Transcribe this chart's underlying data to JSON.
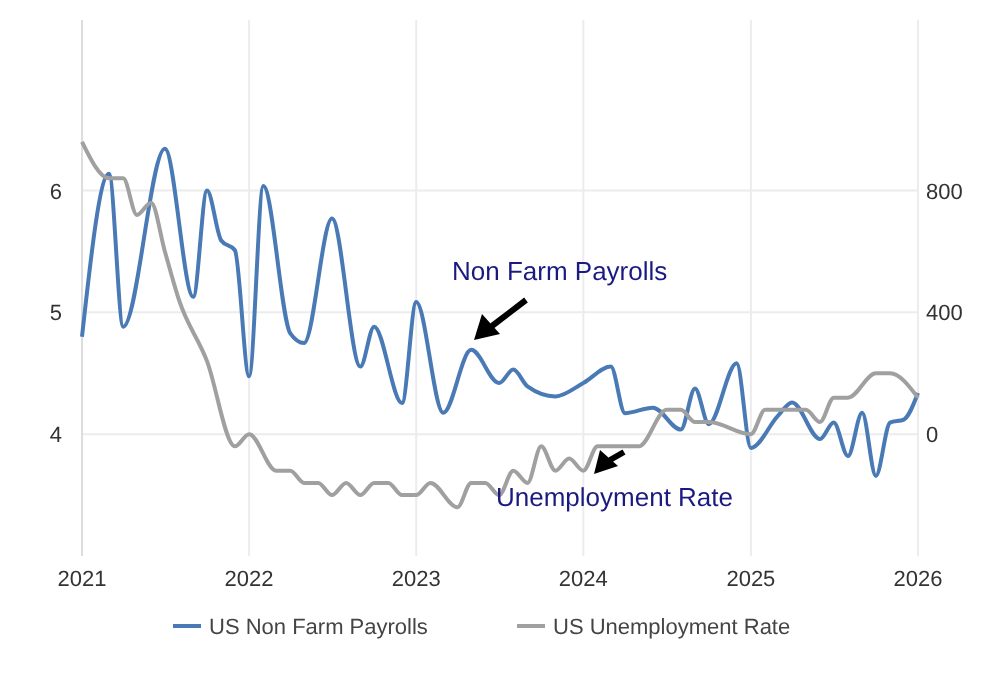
{
  "chart_data": {
    "type": "line",
    "xlim": [
      "2021-01",
      "2026-01"
    ],
    "xticks": [
      "2021",
      "2022",
      "2023",
      "2024",
      "2025",
      "2026"
    ],
    "ylim": [
      3,
      7.4
    ],
    "yticks": [
      4,
      5,
      6
    ],
    "y2lim": [
      -400,
      1360
    ],
    "y2ticks": [
      0,
      400,
      800
    ],
    "grid": true,
    "legend": "bottom",
    "line_style": "solid",
    "annotations": [
      "Non Farm Payrolls",
      "Unemployment Rate"
    ],
    "series": [
      {
        "name": "US Non Farm Payrolls",
        "color": "#4a7ab5",
        "axis": "y2",
        "x": [
          "2021-01",
          "2021-03",
          "2021-04",
          "2021-07",
          "2021-09",
          "2021-10",
          "2021-11",
          "2021-12",
          "2022-01",
          "2022-02",
          "2022-04",
          "2022-05",
          "2022-07",
          "2022-09",
          "2022-10",
          "2022-12",
          "2023-01",
          "2023-03",
          "2023-05",
          "2023-07",
          "2023-08",
          "2023-09",
          "2023-11",
          "2024-01",
          "2024-03",
          "2024-04",
          "2024-06",
          "2024-08",
          "2024-09",
          "2024-10",
          "2024-12",
          "2025-01",
          "2025-03",
          "2025-04",
          "2025-06",
          "2025-07",
          "2025-08",
          "2025-09",
          "2025-10",
          "2025-11",
          "2025-12",
          "2026-01"
        ],
        "values": [
          320,
          855,
          353,
          937,
          451,
          800,
          636,
          604,
          190,
          815,
          331,
          299,
          708,
          222,
          353,
          102,
          434,
          70,
          277,
          168,
          212,
          157,
          124,
          168,
          222,
          69,
          87,
          15,
          150,
          33,
          233,
          -45,
          60,
          104,
          -16,
          38,
          -72,
          70,
          -137,
          38,
          48,
          135
        ]
      },
      {
        "name": "US Unemployment Rate",
        "color": "#a0a0a0",
        "axis": "y",
        "x": [
          "2021-01",
          "2021-03",
          "2021-04",
          "2021-05",
          "2021-06",
          "2021-07",
          "2021-08",
          "2021-10",
          "2021-12",
          "2022-01",
          "2022-03",
          "2022-04",
          "2022-05",
          "2022-06",
          "2022-07",
          "2022-08",
          "2022-09",
          "2022-10",
          "2022-11",
          "2022-12",
          "2023-01",
          "2023-02",
          "2023-04",
          "2023-05",
          "2023-06",
          "2023-07",
          "2023-08",
          "2023-09",
          "2023-10",
          "2023-11",
          "2023-12",
          "2024-01",
          "2024-02",
          "2024-05",
          "2024-07",
          "2024-08",
          "2024-09",
          "2024-10",
          "2025-01",
          "2025-02",
          "2025-05",
          "2025-06",
          "2025-07",
          "2025-08",
          "2025-10",
          "2025-11",
          "2026-01"
        ],
        "values": [
          6.4,
          6.1,
          6.1,
          5.8,
          5.9,
          5.5,
          5.1,
          4.6,
          3.9,
          4.0,
          3.7,
          3.7,
          3.6,
          3.6,
          3.5,
          3.6,
          3.5,
          3.6,
          3.6,
          3.5,
          3.5,
          3.6,
          3.4,
          3.6,
          3.6,
          3.5,
          3.7,
          3.6,
          3.9,
          3.7,
          3.8,
          3.7,
          3.9,
          3.9,
          4.2,
          4.2,
          4.1,
          4.1,
          4.0,
          4.2,
          4.2,
          4.1,
          4.3,
          4.3,
          4.5,
          4.5,
          4.3
        ]
      }
    ]
  }
}
